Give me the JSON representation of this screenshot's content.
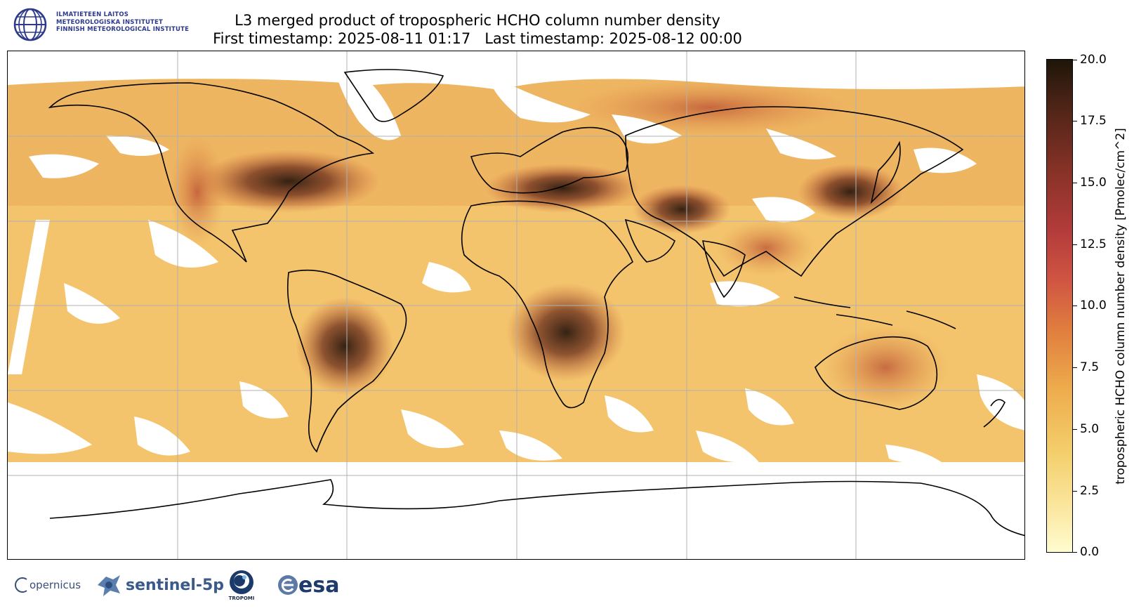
{
  "header": {
    "org_lines": [
      "ILMATIETEEN LAITOS",
      "METEOROLOGISKA INSTITUTET",
      "FINNISH METEOROLOGICAL INSTITUTE"
    ],
    "title_line1": "L3 merged product of tropospheric HCHO column number density",
    "title_line2": "First timestamp: 2025-08-11 01:17   Last timestamp: 2025-08-12 00:00"
  },
  "colorbar": {
    "label": "tropospheric HCHO column number density [Pmolec/cm^2]",
    "range": [
      0.0,
      20.0
    ],
    "ticks": [
      "0.0",
      "2.5",
      "5.0",
      "7.5",
      "10.0",
      "12.5",
      "15.0",
      "17.5",
      "20.0"
    ],
    "colors": [
      "#fffcd0",
      "#f4cf6c",
      "#eeac4d",
      "#e07e3e",
      "#d15543",
      "#b43c3b",
      "#853126",
      "#502517",
      "#1e1609"
    ]
  },
  "map": {
    "projection": "plate carree",
    "grid": true,
    "no_data_color": "#ffffff",
    "high_value_regions": [
      "Central Africa",
      "South America interior",
      "Eastern United States",
      "Mediterranean",
      "Eastern China",
      "Middle East"
    ]
  },
  "footer": {
    "logos": [
      "copernicus",
      "sentinel-5p",
      "TROPOMI",
      "esa"
    ],
    "copernicus_text": "opernicus",
    "sentinel_text": "sentinel-5p",
    "tropomi_text": "TROPOMI",
    "esa_text": "esa"
  }
}
